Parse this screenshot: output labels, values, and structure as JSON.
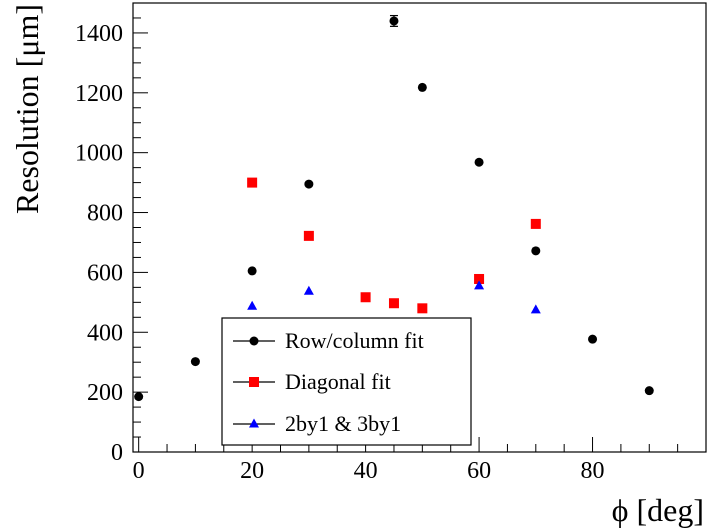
{
  "chart_data": {
    "type": "scatter",
    "title": "",
    "xlabel": "ϕ [deg]",
    "ylabel": "Resolution [μm]",
    "xlim": [
      -1,
      100
    ],
    "ylim": [
      0,
      1500
    ],
    "x_ticks": [
      0,
      20,
      40,
      60,
      80
    ],
    "y_ticks": [
      0,
      200,
      400,
      600,
      800,
      1000,
      1200,
      1400
    ],
    "grid": false,
    "legend_position": "bottom-center",
    "series": [
      {
        "name": "Row/column fit",
        "marker": "circle",
        "color": "#000000",
        "points": [
          {
            "x": 0,
            "y": 185
          },
          {
            "x": 10,
            "y": 302
          },
          {
            "x": 20,
            "y": 605
          },
          {
            "x": 30,
            "y": 895
          },
          {
            "x": 45,
            "y": 1440,
            "err": 18
          },
          {
            "x": 50,
            "y": 1218
          },
          {
            "x": 60,
            "y": 968
          },
          {
            "x": 70,
            "y": 672
          },
          {
            "x": 80,
            "y": 377
          },
          {
            "x": 90,
            "y": 205
          }
        ]
      },
      {
        "name": "Diagonal fit",
        "marker": "square",
        "color": "#ff0000",
        "points": [
          {
            "x": 20,
            "y": 900
          },
          {
            "x": 30,
            "y": 722
          },
          {
            "x": 40,
            "y": 517
          },
          {
            "x": 45,
            "y": 497
          },
          {
            "x": 50,
            "y": 480
          },
          {
            "x": 60,
            "y": 578
          },
          {
            "x": 70,
            "y": 762
          }
        ]
      },
      {
        "name": "2by1 & 3by1",
        "marker": "triangle",
        "color": "#0000ff",
        "points": [
          {
            "x": 20,
            "y": 487
          },
          {
            "x": 30,
            "y": 537
          },
          {
            "x": 60,
            "y": 555
          },
          {
            "x": 70,
            "y": 475
          }
        ]
      }
    ]
  }
}
